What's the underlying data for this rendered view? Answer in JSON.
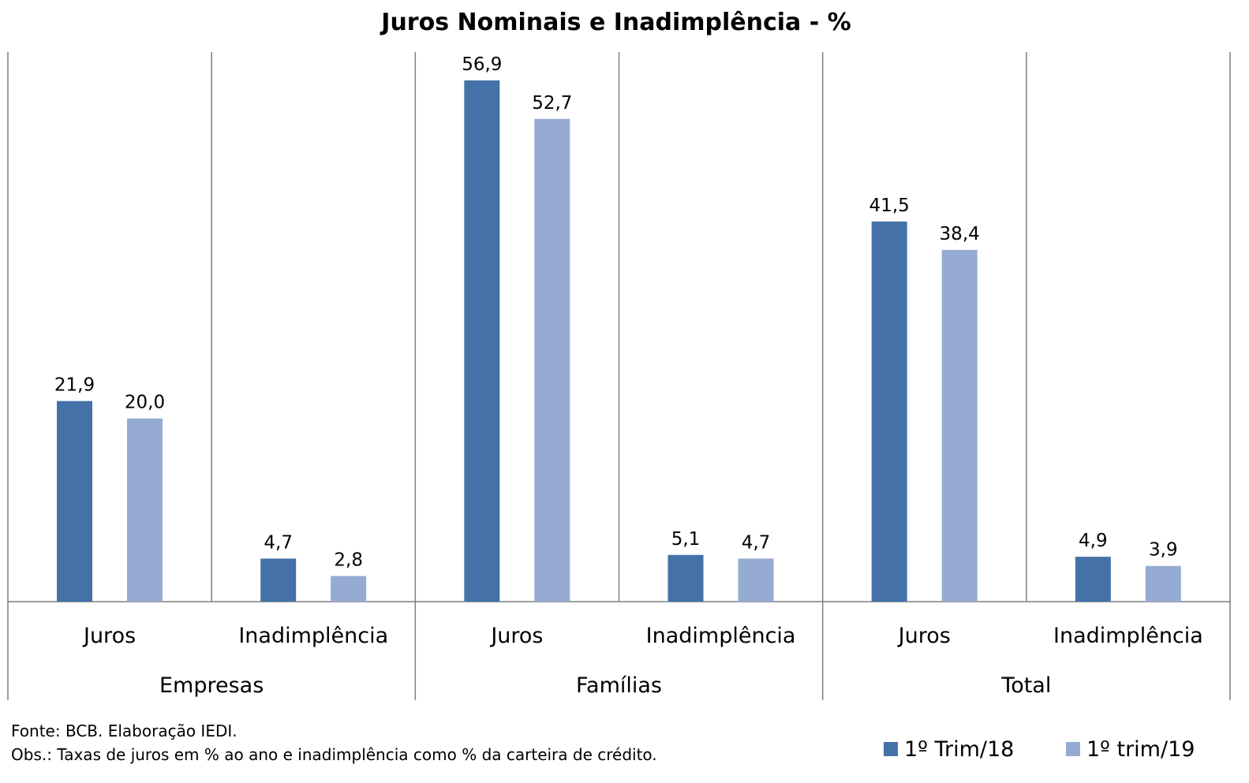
{
  "chart_data": {
    "type": "bar",
    "title": "Juros Nominais e Inadimplência - %",
    "groups": [
      {
        "label": "Empresas",
        "categories": [
          "Juros",
          "Inadimplência"
        ]
      },
      {
        "label": "Famílias",
        "categories": [
          "Juros",
          "Inadimplência"
        ]
      },
      {
        "label": "Total",
        "categories": [
          "Juros",
          "Inadimplência"
        ]
      }
    ],
    "series": [
      {
        "name": "1º Trim/18",
        "color": "#4472A8",
        "values": [
          21.9,
          4.7,
          56.9,
          5.1,
          41.5,
          4.9
        ],
        "labels": [
          "21,9",
          "4,7",
          "56,9",
          "5,1",
          "41,5",
          "4,9"
        ]
      },
      {
        "name": "1º trim/19",
        "color": "#96ABD2",
        "values": [
          20.0,
          2.8,
          52.7,
          4.7,
          38.4,
          3.9
        ],
        "labels": [
          "20,0",
          "2,8",
          "52,7",
          "4,7",
          "38,4",
          "3,9"
        ]
      }
    ],
    "ylim": [
      0,
      60
    ],
    "grid": false,
    "legend": "bottom-right"
  },
  "notes": {
    "source": "Fonte: BCB. Elaboração IEDI.",
    "obs": "Obs.: Taxas de juros em % ao ano e inadimplência como % da carteira de crédito."
  }
}
